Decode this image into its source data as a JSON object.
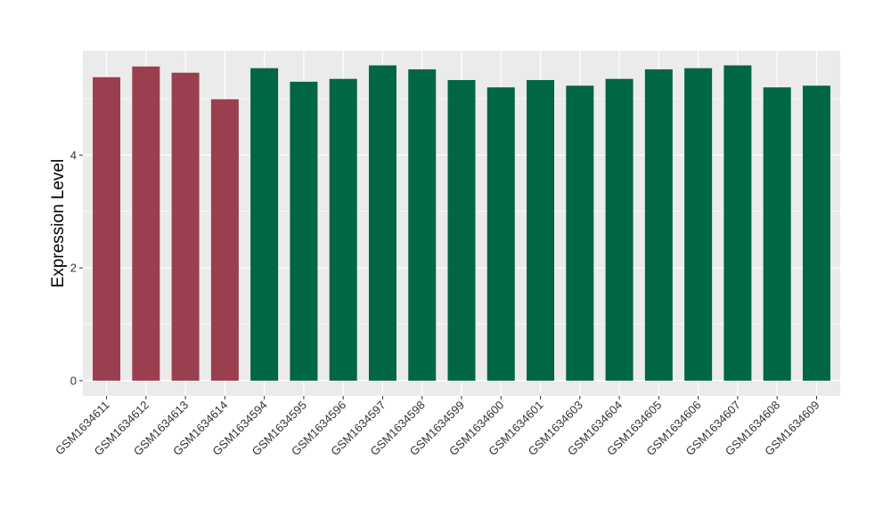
{
  "chart_data": {
    "type": "bar",
    "title": "",
    "xlabel": "",
    "ylabel": "Expression Level",
    "ylim": [
      -0.27,
      5.85
    ],
    "y_ticks": [
      0,
      2,
      4
    ],
    "grid": true,
    "legend": "none",
    "colors": {
      "panel_background": "#ebebeb",
      "grid_major": "#ffffff",
      "group_a": "#9a3f4f",
      "group_b": "#006644"
    },
    "categories": [
      "GSM1634611",
      "GSM1634612",
      "GSM1634613",
      "GSM1634614",
      "GSM1634594",
      "GSM1634595",
      "GSM1634596",
      "GSM1634597",
      "GSM1634598",
      "GSM1634599",
      "GSM1634600",
      "GSM1634601",
      "GSM1634603",
      "GSM1634604",
      "GSM1634605",
      "GSM1634606",
      "GSM1634607",
      "GSM1634608",
      "GSM1634609"
    ],
    "values": [
      5.38,
      5.57,
      5.46,
      4.99,
      5.54,
      5.3,
      5.35,
      5.59,
      5.52,
      5.33,
      5.2,
      5.33,
      5.23,
      5.35,
      5.52,
      5.54,
      5.59,
      5.2,
      5.23
    ],
    "groups": [
      "a",
      "a",
      "a",
      "a",
      "b",
      "b",
      "b",
      "b",
      "b",
      "b",
      "b",
      "b",
      "b",
      "b",
      "b",
      "b",
      "b",
      "b",
      "b"
    ]
  }
}
